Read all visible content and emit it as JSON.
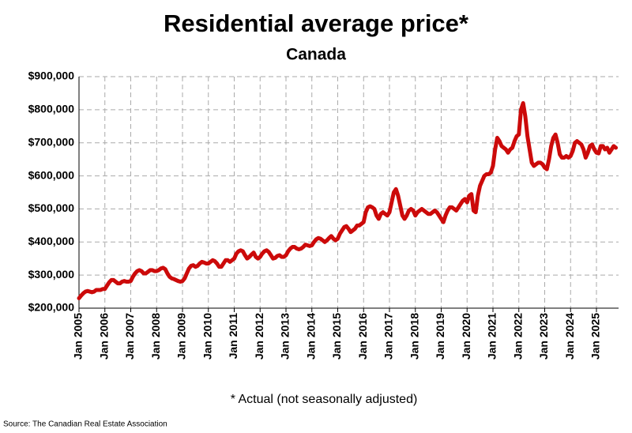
{
  "chart_data": {
    "type": "line",
    "title": "Residential average price*",
    "subtitle": "Canada",
    "footnote": "* Actual (not seasonally adjusted)",
    "source": "Source: The Canadian Real Estate Association",
    "categories": [
      "Jan 2005",
      null,
      null,
      null,
      null,
      null,
      null,
      null,
      null,
      null,
      null,
      null,
      "Jan 2006",
      null,
      null,
      null,
      null,
      null,
      null,
      null,
      null,
      null,
      null,
      null,
      "Jan 2007",
      null,
      null,
      null,
      null,
      null,
      null,
      null,
      null,
      null,
      null,
      null,
      "Jan 2008",
      null,
      null,
      null,
      null,
      null,
      null,
      null,
      null,
      null,
      null,
      null,
      "Jan 2009",
      null,
      null,
      null,
      null,
      null,
      null,
      null,
      null,
      null,
      null,
      null,
      "Jan 2010",
      null,
      null,
      null,
      null,
      null,
      null,
      null,
      null,
      null,
      null,
      null,
      "Jan 2011",
      null,
      null,
      null,
      null,
      null,
      null,
      null,
      null,
      null,
      null,
      null,
      "Jan 2012",
      null,
      null,
      null,
      null,
      null,
      null,
      null,
      null,
      null,
      null,
      null,
      "Jan 2013",
      null,
      null,
      null,
      null,
      null,
      null,
      null,
      null,
      null,
      null,
      null,
      "Jan 2014",
      null,
      null,
      null,
      null,
      null,
      null,
      null,
      null,
      null,
      null,
      null,
      "Jan 2015",
      null,
      null,
      null,
      null,
      null,
      null,
      null,
      null,
      null,
      null,
      null,
      "Jan 2016",
      null,
      null,
      null,
      null,
      null,
      null,
      null,
      null,
      null,
      null,
      null,
      "Jan 2017",
      null,
      null,
      null,
      null,
      null,
      null,
      null,
      null,
      null,
      null,
      null,
      "Jan 2018",
      null,
      null,
      null,
      null,
      null,
      null,
      null,
      null,
      null,
      null,
      null,
      "Jan 2019",
      null,
      null,
      null,
      null,
      null,
      null,
      null,
      null,
      null,
      null,
      null,
      "Jan 2020",
      null,
      null,
      null,
      null,
      null,
      null,
      null,
      null,
      null,
      null,
      null,
      "Jan 2021",
      null,
      null,
      null,
      null,
      null,
      null,
      null,
      null,
      null,
      null,
      null,
      "Jan 2022",
      null,
      null,
      null,
      null,
      null,
      null,
      null,
      null,
      null,
      null,
      null,
      "Jan 2023",
      null,
      null,
      null,
      null,
      null,
      null,
      null,
      null,
      null,
      null,
      null,
      "Jan 2024",
      null,
      null,
      null,
      null,
      null,
      null,
      null,
      null,
      null,
      null,
      null,
      "Jan 2025",
      null,
      null,
      null,
      null,
      null,
      null,
      null,
      null,
      null
    ],
    "series": [
      {
        "color": "#cc0a0a",
        "values": [
          230000,
          238000,
          245000,
          250000,
          252000,
          250000,
          248000,
          250000,
          255000,
          255000,
          255000,
          258000,
          258000,
          268000,
          278000,
          285000,
          285000,
          280000,
          275000,
          275000,
          280000,
          282000,
          280000,
          280000,
          282000,
          295000,
          305000,
          312000,
          315000,
          312000,
          305000,
          305000,
          310000,
          315000,
          315000,
          312000,
          312000,
          315000,
          320000,
          322000,
          318000,
          305000,
          295000,
          290000,
          288000,
          285000,
          282000,
          280000,
          282000,
          290000,
          305000,
          320000,
          328000,
          330000,
          325000,
          328000,
          335000,
          340000,
          338000,
          335000,
          335000,
          340000,
          345000,
          342000,
          335000,
          325000,
          325000,
          335000,
          345000,
          345000,
          340000,
          345000,
          350000,
          365000,
          372000,
          375000,
          372000,
          360000,
          350000,
          355000,
          362000,
          368000,
          355000,
          350000,
          355000,
          365000,
          372000,
          375000,
          370000,
          360000,
          350000,
          352000,
          358000,
          360000,
          355000,
          355000,
          360000,
          372000,
          380000,
          385000,
          385000,
          380000,
          378000,
          380000,
          385000,
          392000,
          390000,
          388000,
          390000,
          400000,
          408000,
          412000,
          410000,
          405000,
          400000,
          405000,
          412000,
          418000,
          410000,
          405000,
          410000,
          425000,
          435000,
          445000,
          448000,
          440000,
          430000,
          435000,
          440000,
          450000,
          450000,
          455000,
          460000,
          490000,
          505000,
          508000,
          505000,
          500000,
          480000,
          470000,
          485000,
          490000,
          485000,
          480000,
          490000,
          520000,
          550000,
          560000,
          540000,
          510000,
          480000,
          470000,
          480000,
          495000,
          500000,
          495000,
          480000,
          490000,
          495000,
          500000,
          495000,
          490000,
          485000,
          485000,
          490000,
          495000,
          490000,
          480000,
          470000,
          460000,
          480000,
          495000,
          505000,
          505000,
          500000,
          495000,
          505000,
          515000,
          525000,
          530000,
          520000,
          540000,
          545000,
          495000,
          490000,
          540000,
          570000,
          585000,
          600000,
          605000,
          605000,
          610000,
          630000,
          680000,
          715000,
          705000,
          690000,
          685000,
          680000,
          670000,
          680000,
          685000,
          705000,
          720000,
          725000,
          800000,
          820000,
          780000,
          720000,
          680000,
          640000,
          630000,
          635000,
          640000,
          640000,
          635000,
          625000,
          620000,
          650000,
          690000,
          715000,
          725000,
          700000,
          665000,
          655000,
          655000,
          660000,
          655000,
          660000,
          675000,
          700000,
          705000,
          700000,
          695000,
          680000,
          655000,
          670000,
          690000,
          695000,
          680000,
          670000,
          668000,
          690000,
          690000,
          680000,
          685000,
          670000,
          680000,
          690000,
          685000
        ]
      }
    ],
    "ylim": [
      200000,
      900000
    ],
    "yticks": [
      {
        "value": 200000,
        "label": "$200,000"
      },
      {
        "value": 300000,
        "label": "$300,000"
      },
      {
        "value": 400000,
        "label": "$400,000"
      },
      {
        "value": 500000,
        "label": "$500,000"
      },
      {
        "value": 600000,
        "label": "$600,000"
      },
      {
        "value": 700000,
        "label": "$700,000"
      },
      {
        "value": 800000,
        "label": "$800,000"
      },
      {
        "value": 900000,
        "label": "$900,000"
      }
    ],
    "grid": true
  }
}
